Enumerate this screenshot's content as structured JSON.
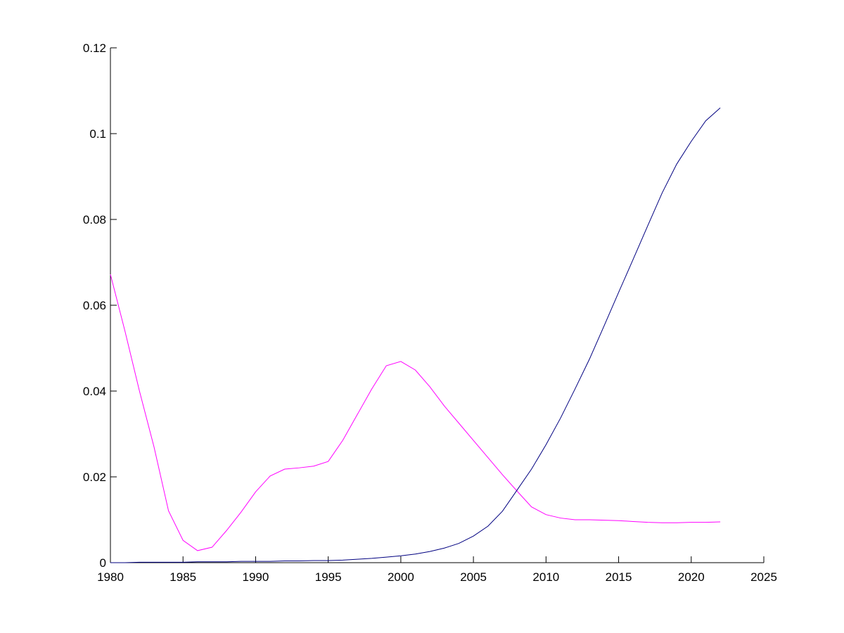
{
  "chart_data": {
    "type": "line",
    "x": [
      1980,
      1981,
      1982,
      1983,
      1984,
      1985,
      1986,
      1987,
      1988,
      1989,
      1990,
      1991,
      1992,
      1993,
      1994,
      1995,
      1996,
      1997,
      1998,
      1999,
      2000,
      2001,
      2002,
      2003,
      2004,
      2005,
      2006,
      2007,
      2008,
      2009,
      2010,
      2011,
      2012,
      2013,
      2014,
      2015,
      2016,
      2017,
      2018,
      2019,
      2020,
      2021,
      2022
    ],
    "series": [
      {
        "color": "#ff00ff",
        "values": [
          0.0672,
          0.054,
          0.04,
          0.027,
          0.0121,
          0.0052,
          0.0028,
          0.0036,
          0.0075,
          0.0118,
          0.0165,
          0.0202,
          0.0218,
          0.0221,
          0.0225,
          0.0236,
          0.0285,
          0.0345,
          0.0405,
          0.0459,
          0.0469,
          0.0449,
          0.041,
          0.0365,
          0.0325,
          0.0285,
          0.0245,
          0.0205,
          0.0167,
          0.013,
          0.0112,
          0.0104,
          0.01,
          0.01,
          0.0099,
          0.0098,
          0.0096,
          0.0094,
          0.0093,
          0.0093,
          0.0094,
          0.0094,
          0.0095
        ]
      },
      {
        "color": "#000080",
        "values": [
          0,
          0,
          0.0001,
          0.0001,
          0.0001,
          0.0001,
          0.0002,
          0.0002,
          0.0002,
          0.0003,
          0.0003,
          0.0003,
          0.0004,
          0.0004,
          0.0005,
          0.0005,
          0.0006,
          0.0008,
          0.001,
          0.0013,
          0.0016,
          0.002,
          0.0026,
          0.0034,
          0.0045,
          0.0062,
          0.0085,
          0.012,
          0.0169,
          0.0218,
          0.0275,
          0.0337,
          0.0405,
          0.0475,
          0.0552,
          0.063,
          0.0707,
          0.0785,
          0.0862,
          0.0929,
          0.0982,
          0.103,
          0.106
        ]
      }
    ],
    "xlim": [
      1980,
      2025
    ],
    "xticks": [
      1980,
      1985,
      1990,
      1995,
      2000,
      2005,
      2010,
      2015,
      2020,
      2025
    ],
    "ylim": [
      0,
      0.12
    ],
    "yticks": [
      0,
      0.02,
      0.04,
      0.06,
      0.08,
      0.1,
      0.12
    ]
  }
}
